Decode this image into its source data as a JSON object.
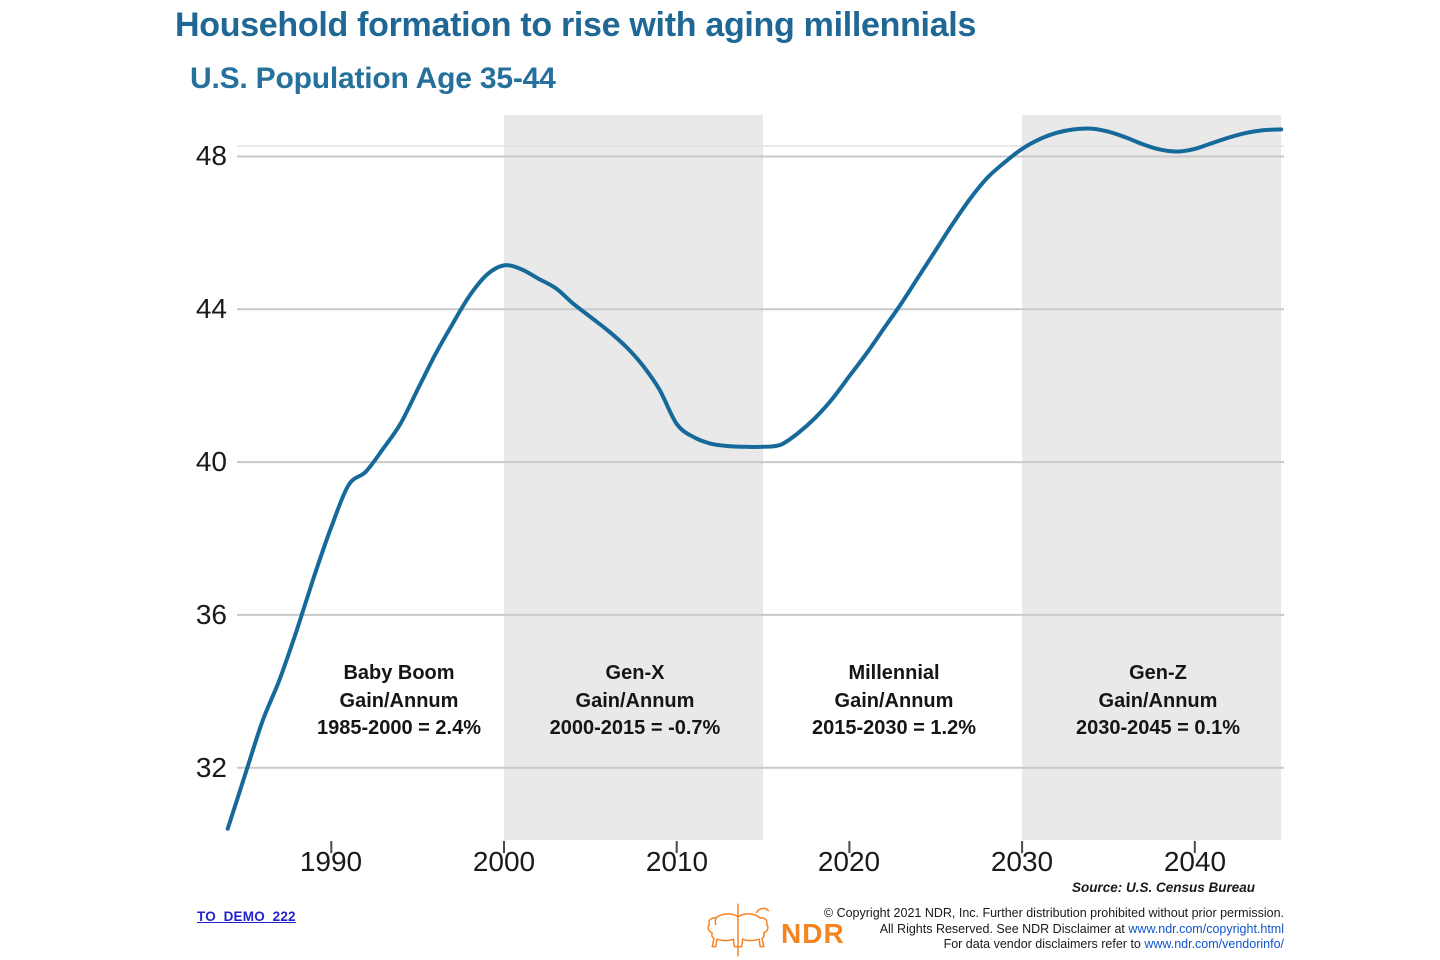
{
  "header": {
    "title": "Household formation to rise with aging millennials",
    "subtitle": "U.S. Population Age 35-44"
  },
  "chart_data": {
    "type": "line",
    "title": "Household formation to rise with aging millennials",
    "subtitle": "U.S. Population Age 35-44",
    "xlabel": "",
    "ylabel": "",
    "grid": "horizontal",
    "legend": "none",
    "ylim": [
      30.1,
      49.1
    ],
    "xlim": [
      1983.5,
      2045.5
    ],
    "yticks": [
      48,
      44,
      40,
      36,
      32
    ],
    "xticks": [
      1990,
      2000,
      2010,
      2020,
      2030,
      2040
    ],
    "shaded_bands": [
      {
        "from": 2000,
        "to": 2015
      },
      {
        "from": 2030,
        "to": 2045
      }
    ],
    "line_color": "#166a9a",
    "band_color": "#e9e9e9",
    "gridline_color": "#c9c9c9",
    "series": [
      {
        "name": "U.S. Population Age 35-44 (millions)",
        "x": [
          1984,
          1985,
          1986,
          1987,
          1988,
          1989,
          1990,
          1991,
          1992,
          1993,
          1994,
          1995,
          1996,
          1997,
          1998,
          1999,
          2000,
          2001,
          2002,
          2003,
          2004,
          2005,
          2006,
          2007,
          2008,
          2009,
          2010,
          2011,
          2012,
          2013,
          2014,
          2015,
          2016,
          2017,
          2018,
          2019,
          2020,
          2021,
          2022,
          2023,
          2024,
          2025,
          2026,
          2027,
          2028,
          2029,
          2030,
          2031,
          2032,
          2033,
          2034,
          2035,
          2036,
          2037,
          2038,
          2039,
          2040,
          2041,
          2042,
          2043,
          2044,
          2045
        ],
        "values": [
          30.4,
          31.8,
          33.2,
          34.3,
          35.6,
          37.0,
          38.3,
          39.4,
          39.75,
          40.35,
          41.0,
          41.9,
          42.8,
          43.6,
          44.35,
          44.9,
          45.15,
          45.05,
          44.8,
          44.55,
          44.15,
          43.8,
          43.45,
          43.05,
          42.55,
          41.9,
          41.0,
          40.65,
          40.48,
          40.42,
          40.4,
          40.4,
          40.45,
          40.75,
          41.15,
          41.65,
          42.25,
          42.85,
          43.5,
          44.15,
          44.85,
          45.55,
          46.25,
          46.9,
          47.45,
          47.85,
          48.2,
          48.45,
          48.62,
          48.71,
          48.73,
          48.65,
          48.5,
          48.32,
          48.18,
          48.13,
          48.2,
          48.35,
          48.5,
          48.62,
          48.69,
          48.71
        ]
      }
    ],
    "annotations": [
      {
        "lines": [
          "Baby Boom",
          "Gain/Annum",
          "1985-2000 = 2.4%"
        ]
      },
      {
        "lines": [
          "Gen-X",
          "Gain/Annum",
          "2000-2015 = -0.7%"
        ]
      },
      {
        "lines": [
          "Millennial",
          "Gain/Annum",
          "2015-2030 = 1.2%"
        ]
      },
      {
        "lines": [
          "Gen-Z",
          "Gain/Annum",
          "2030-2045 = 0.1%"
        ]
      }
    ]
  },
  "footer": {
    "chart_id": "TO_DEMO_222",
    "source": "Source: U.S. Census Bureau",
    "logo_text": "NDR",
    "copyright_line1": "© Copyright 2021 NDR, Inc. Further distribution prohibited without prior permission.",
    "copyright_line2_prefix": "All Rights Reserved. See NDR Disclaimer at ",
    "copyright_line2_link": "www.ndr.com/copyright.html",
    "copyright_line3_prefix": "For data vendor disclaimers refer to ",
    "copyright_line3_link": "www.ndr.com/vendorinfo/"
  },
  "colors": {
    "title_blue": "#1f6795",
    "line_blue": "#166a9a",
    "band_gray": "#e9e9e9",
    "logo_orange": "#f5831f",
    "link_blue": "#1155cc",
    "chart_id_blue": "#2222cc"
  }
}
